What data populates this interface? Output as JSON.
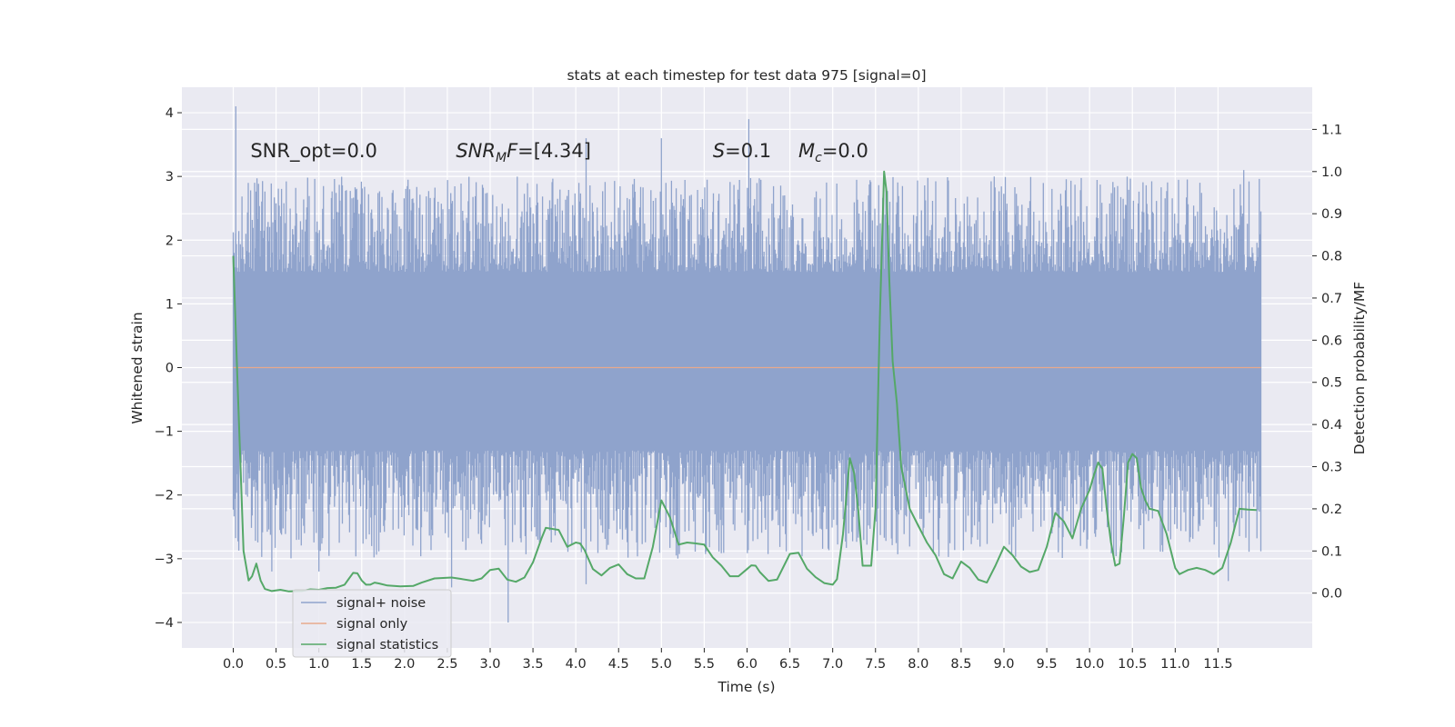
{
  "chart_data": {
    "type": "line",
    "title": "stats at each timestep for test data 975 [signal=0]",
    "xlabel": "Time (s)",
    "ylabel": "Whitened strain",
    "y2label": "Detection probability/MF",
    "xlim": [
      -0.6,
      12.6
    ],
    "ylim": [
      -4.4,
      4.4
    ],
    "y2lim": [
      -0.13,
      1.2
    ],
    "x_ticks": [
      0.0,
      0.5,
      1.0,
      1.5,
      2.0,
      2.5,
      3.0,
      3.5,
      4.0,
      4.5,
      5.0,
      5.5,
      6.0,
      6.5,
      7.0,
      7.5,
      8.0,
      8.5,
      9.0,
      9.5,
      10.0,
      10.5,
      11.0,
      11.5
    ],
    "x_tick_labels": [
      "0.0",
      "0.5",
      "1.0",
      "1.5",
      "2.0",
      "2.5",
      "3.0",
      "3.5",
      "4.0",
      "4.5",
      "5.0",
      "5.5",
      "6.0",
      "6.5",
      "7.0",
      "7.5",
      "8.0",
      "8.5",
      "9.0",
      "9.5",
      "10.0",
      "10.5",
      "11.0",
      "11.5"
    ],
    "y_ticks": [
      -4,
      -3,
      -2,
      -1,
      0,
      1,
      2,
      3,
      4
    ],
    "y_tick_labels": [
      "−4",
      "−3",
      "−2",
      "−1",
      "0",
      "1",
      "2",
      "3",
      "4"
    ],
    "y2_ticks": [
      0.0,
      0.1,
      0.2,
      0.3,
      0.4,
      0.5,
      0.6,
      0.7,
      0.8,
      0.9,
      1.0,
      1.1
    ],
    "y2_tick_labels": [
      "0.0",
      "0.1",
      "0.2",
      "0.3",
      "0.4",
      "0.5",
      "0.6",
      "0.7",
      "0.8",
      "0.9",
      "1.0",
      "1.1"
    ],
    "annotations": [
      {
        "id": "snr-opt",
        "text": "SNR_opt=0.0",
        "x": 0.2,
        "y": 3.3
      },
      {
        "id": "snr-mf",
        "text": "=[4.34]",
        "x": 2.6,
        "y": 3.3
      },
      {
        "id": "s",
        "text": "=0.1",
        "x": 5.6,
        "y": 3.3
      },
      {
        "id": "mc",
        "text": "=0.0",
        "x": 6.6,
        "y": 3.3
      }
    ],
    "annotation_symbols": {
      "snr_main": "SNR",
      "snr_sub": "M",
      "snr_tail": "F",
      "s": "S",
      "mc_main": "M",
      "mc_sub": "c"
    },
    "series": [
      {
        "name": "signal+ noise",
        "color": "#8fa3cc",
        "axis": "left",
        "style": "noise band",
        "x_range": [
          0.0,
          12.0
        ],
        "core_amplitude": 1.3,
        "typical_upper_range": [
          1.5,
          3.0
        ],
        "typical_lower_range": [
          -1.3,
          -3.0
        ],
        "spikes": [
          {
            "x": 0.03,
            "y": 4.1
          },
          {
            "x": 6.02,
            "y": 3.9
          },
          {
            "x": 4.12,
            "y": 3.6
          },
          {
            "x": 5.0,
            "y": 3.6
          },
          {
            "x": 11.8,
            "y": 3.1
          },
          {
            "x": 3.21,
            "y": -4.0
          },
          {
            "x": 2.55,
            "y": -3.45
          },
          {
            "x": 4.12,
            "y": -3.4
          },
          {
            "x": 11.62,
            "y": -3.35
          },
          {
            "x": 0.45,
            "y": -3.2
          },
          {
            "x": 1.0,
            "y": -3.2
          }
        ]
      },
      {
        "name": "signal only",
        "color": "#e8a98c",
        "axis": "left",
        "x": [
          0.0,
          12.0
        ],
        "y": [
          0.0,
          0.0
        ]
      },
      {
        "name": "signal statistics",
        "color": "#55a868",
        "axis": "right",
        "x": [
          0.0,
          0.05,
          0.12,
          0.18,
          0.22,
          0.27,
          0.32,
          0.37,
          0.45,
          0.55,
          0.65,
          0.8,
          0.9,
          1.0,
          1.1,
          1.2,
          1.3,
          1.4,
          1.45,
          1.5,
          1.55,
          1.6,
          1.65,
          1.7,
          1.8,
          1.95,
          2.1,
          2.2,
          2.35,
          2.45,
          2.55,
          2.65,
          2.8,
          2.9,
          3.0,
          3.1,
          3.2,
          3.3,
          3.4,
          3.5,
          3.6,
          3.65,
          3.8,
          3.9,
          4.0,
          4.05,
          4.1,
          4.2,
          4.3,
          4.4,
          4.5,
          4.6,
          4.7,
          4.8,
          4.9,
          5.0,
          5.1,
          5.2,
          5.3,
          5.4,
          5.5,
          5.6,
          5.7,
          5.8,
          5.9,
          6.0,
          6.05,
          6.1,
          6.15,
          6.25,
          6.35,
          6.5,
          6.6,
          6.7,
          6.8,
          6.9,
          7.0,
          7.05,
          7.12,
          7.2,
          7.25,
          7.3,
          7.35,
          7.4,
          7.45,
          7.5,
          7.55,
          7.6,
          7.63,
          7.66,
          7.7,
          7.75,
          7.8,
          7.9,
          8.0,
          8.1,
          8.2,
          8.3,
          8.4,
          8.5,
          8.6,
          8.7,
          8.8,
          8.9,
          9.0,
          9.1,
          9.2,
          9.3,
          9.4,
          9.5,
          9.6,
          9.7,
          9.8,
          9.9,
          10.0,
          10.05,
          10.1,
          10.15,
          10.2,
          10.25,
          10.3,
          10.35,
          10.4,
          10.45,
          10.5,
          10.55,
          10.6,
          10.65,
          10.7,
          10.8,
          10.9,
          11.0,
          11.05,
          11.1,
          11.15,
          11.25,
          11.35,
          11.45,
          11.55,
          11.65,
          11.75,
          11.85,
          11.95
        ],
        "y": [
          0.8,
          0.5,
          0.1,
          0.03,
          0.04,
          0.07,
          0.03,
          0.01,
          0.005,
          0.008,
          0.004,
          0.005,
          0.009,
          0.008,
          0.012,
          0.013,
          0.02,
          0.048,
          0.047,
          0.03,
          0.02,
          0.02,
          0.025,
          0.023,
          0.018,
          0.016,
          0.017,
          0.025,
          0.035,
          0.036,
          0.037,
          0.034,
          0.029,
          0.035,
          0.055,
          0.058,
          0.032,
          0.027,
          0.037,
          0.073,
          0.13,
          0.155,
          0.15,
          0.11,
          0.12,
          0.118,
          0.103,
          0.057,
          0.042,
          0.06,
          0.068,
          0.045,
          0.035,
          0.035,
          0.11,
          0.22,
          0.18,
          0.115,
          0.12,
          0.118,
          0.115,
          0.085,
          0.065,
          0.04,
          0.04,
          0.057,
          0.066,
          0.065,
          0.05,
          0.029,
          0.032,
          0.093,
          0.096,
          0.058,
          0.038,
          0.024,
          0.02,
          0.033,
          0.14,
          0.32,
          0.285,
          0.195,
          0.065,
          0.065,
          0.065,
          0.2,
          0.65,
          1.0,
          0.95,
          0.75,
          0.55,
          0.45,
          0.3,
          0.2,
          0.16,
          0.12,
          0.09,
          0.045,
          0.035,
          0.075,
          0.06,
          0.032,
          0.025,
          0.065,
          0.11,
          0.09,
          0.063,
          0.05,
          0.055,
          0.11,
          0.19,
          0.17,
          0.13,
          0.2,
          0.245,
          0.28,
          0.31,
          0.295,
          0.2,
          0.12,
          0.065,
          0.07,
          0.18,
          0.31,
          0.33,
          0.32,
          0.25,
          0.22,
          0.2,
          0.195,
          0.14,
          0.06,
          0.045,
          0.05,
          0.055,
          0.06,
          0.055,
          0.045,
          0.06,
          0.12,
          0.2,
          0.198,
          0.197
        ]
      }
    ],
    "legend": {
      "location": "lower-left",
      "entries": [
        "signal+ noise",
        "signal only",
        "signal statistics"
      ]
    },
    "grid": true,
    "background": "#eaeaf2",
    "text_color": "#262626"
  }
}
